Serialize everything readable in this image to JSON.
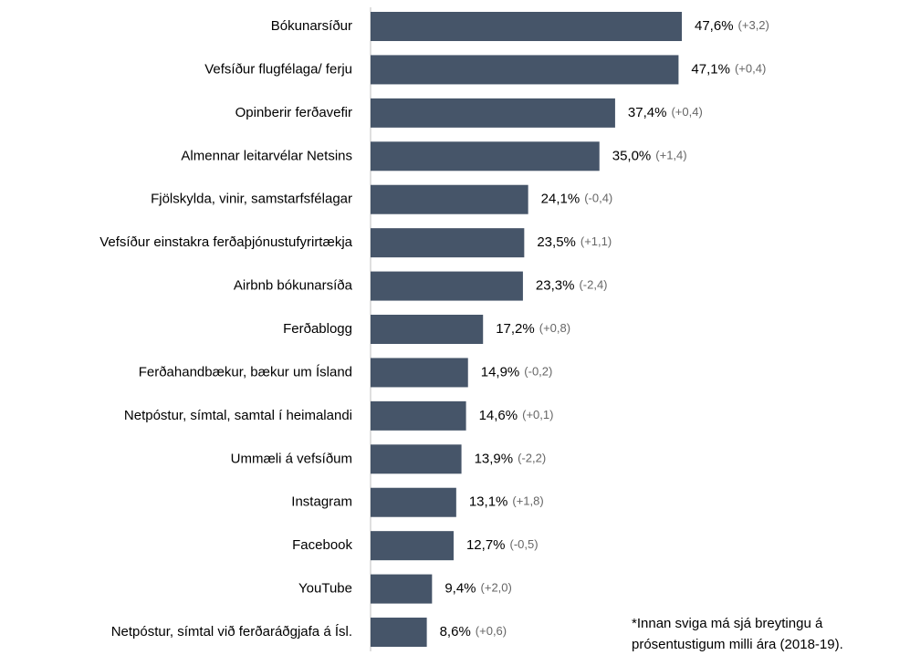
{
  "chart_data": {
    "type": "barh",
    "categories": [
      "Bókunarsíður",
      "Vefsíður flugfélaga/ ferju",
      "Opinberir ferðavefir",
      "Almennar leitarvélar Netsins",
      "Fjölskylda, vinir, samstarfsfélagar",
      "Vefsíður einstakra ferðaþjónustufyrirtækja",
      "Airbnb bókunarsíða",
      "Ferðablogg",
      "Ferðahandbækur, bækur um Ísland",
      "Netpóstur, símtal, samtal í heimalandi",
      "Ummæli á vefsíðum",
      "Instagram",
      "Facebook",
      "YouTube",
      "Netpóstur, símtal við ferðaráðgjafa á Ísl."
    ],
    "values": [
      47.6,
      47.1,
      37.4,
      35.0,
      24.1,
      23.5,
      23.3,
      17.2,
      14.9,
      14.6,
      13.9,
      13.1,
      12.7,
      9.4,
      8.6
    ],
    "value_labels": [
      "47,6%",
      "47,1%",
      "37,4%",
      "35,0%",
      "24,1%",
      "23,5%",
      "23,3%",
      "17,2%",
      "14,9%",
      "14,6%",
      "13,9%",
      "13,1%",
      "12,7%",
      "9,4%",
      "8,6%"
    ],
    "changes": [
      "(+3,2)",
      "(+0,4)",
      "(+0,4)",
      "(+1,4)",
      "(-0,4)",
      "(+1,1)",
      "(-2,4)",
      "(+0,8)",
      "(-0,2)",
      "(+0,1)",
      "(-2,2)",
      "(+1,8)",
      "(-0,5)",
      "(+2,0)",
      "(+0,6)"
    ],
    "color": "#465569",
    "note": [
      "*Innan sviga má sjá breytingu á",
      "prósentustigum milli ára (2018-19)."
    ]
  }
}
